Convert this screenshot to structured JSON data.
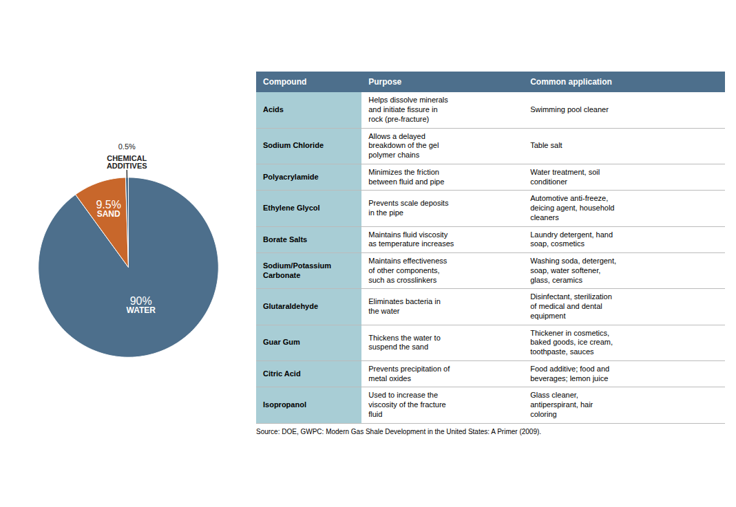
{
  "chart_data": {
    "type": "pie",
    "categories": [
      "WATER",
      "SAND",
      "CHEMICAL\nADDITIVES"
    ],
    "values": [
      90.0,
      9.5,
      0.5
    ],
    "value_labels": [
      "90%",
      "9.5%",
      "0.5%"
    ],
    "colors": [
      "#4d6f8c",
      "#c8672b",
      "#4d6f8c"
    ],
    "data_labels": true,
    "table": {
      "columns": [
        "Compound",
        "Purpose",
        "Common application"
      ],
      "rows": [
        [
          "Acids",
          "Helps dissolve minerals\nand initiate fissure in\nrock (pre-fracture)",
          "Swimming pool cleaner"
        ],
        [
          "Sodium Chloride",
          "Allows a delayed\nbreakdown of the gel\npolymer chains",
          "Table salt"
        ],
        [
          "Polyacrylamide",
          "Minimizes the friction\nbetween fluid and pipe",
          "Water treatment, soil\nconditioner"
        ],
        [
          "Ethylene Glycol",
          "Prevents scale deposits\nin the pipe",
          "Automotive anti-freeze,\ndeicing agent, household\ncleaners"
        ],
        [
          "Borate Salts",
          "Maintains fluid viscosity\nas temperature increases",
          "Laundry detergent, hand\nsoap, cosmetics"
        ],
        [
          "Sodium/Potassium\nCarbonate",
          "Maintains effectiveness\nof other components,\nsuch as crosslinkers",
          "Washing soda, detergent,\nsoap, water softener,\nglass, ceramics"
        ],
        [
          "Glutaraldehyde",
          "Eliminates bacteria in\nthe water",
          "Disinfectant, sterilization\nof medical and dental\nequipment"
        ],
        [
          "Guar Gum",
          "Thickens the water to\nsuspend the sand",
          "Thickener in cosmetics,\nbaked goods, ice cream,\ntoothpaste, sauces"
        ],
        [
          "Citric Acid",
          "Prevents precipitation of\nmetal oxides",
          "Food additive; food and\nbeverages; lemon juice"
        ],
        [
          "Isopropanol",
          "Used to increase the\nviscosity of the fracture\nfluid",
          "Glass cleaner,\nantiperspirant, hair\ncoloring"
        ]
      ]
    },
    "source": "Source: DOE, GWPC: Modern Gas Shale Development in the United States: A Primer (2009)."
  }
}
